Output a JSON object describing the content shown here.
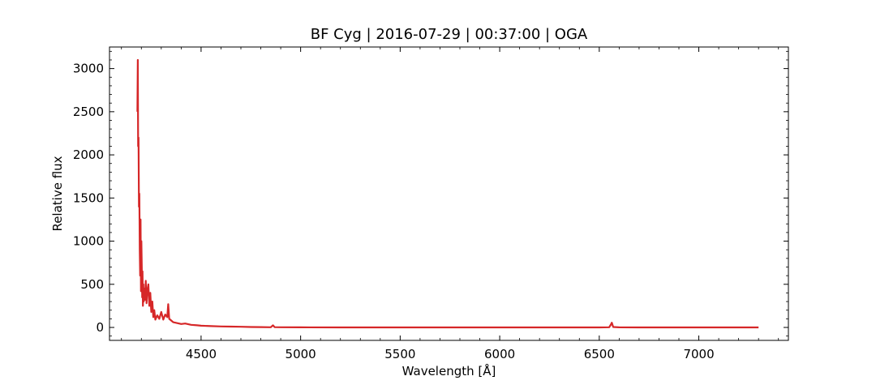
{
  "chart_data": {
    "type": "line",
    "title": "BF Cyg | 2016-07-29 | 00:37:00 | OGA",
    "xlabel": "Wavelength [Å]",
    "ylabel": "Relative flux",
    "xlim": [
      4040,
      7450
    ],
    "ylim": [
      -150,
      3250
    ],
    "x_ticks": [
      4500,
      5000,
      5500,
      6000,
      6500,
      7000
    ],
    "y_ticks": [
      0,
      500,
      1000,
      1500,
      2000,
      2500,
      3000
    ],
    "grid": false,
    "legend": "none",
    "series": [
      {
        "color": "#d62728",
        "x": [
          4180,
          4182,
          4184,
          4186,
          4188,
          4190,
          4192,
          4194,
          4196,
          4198,
          4200,
          4202,
          4204,
          4206,
          4208,
          4210,
          4212,
          4215,
          4218,
          4222,
          4226,
          4230,
          4235,
          4240,
          4245,
          4250,
          4255,
          4260,
          4265,
          4270,
          4280,
          4290,
          4300,
          4310,
          4320,
          4330,
          4335,
          4340,
          4350,
          4360,
          4380,
          4400,
          4420,
          4450,
          4480,
          4500,
          4550,
          4600,
          4650,
          4700,
          4750,
          4800,
          4850,
          4861,
          4870,
          4900,
          5000,
          5200,
          5500,
          5800,
          6000,
          6300,
          6500,
          6550,
          6560,
          6563,
          6570,
          6600,
          6700,
          7000,
          7200,
          7300
        ],
        "y": [
          2500,
          3100,
          2100,
          2200,
          1400,
          1550,
          900,
          600,
          1250,
          420,
          1000,
          700,
          350,
          650,
          250,
          500,
          300,
          450,
          320,
          540,
          280,
          420,
          500,
          250,
          400,
          180,
          300,
          120,
          200,
          90,
          140,
          100,
          180,
          90,
          150,
          120,
          270,
          100,
          80,
          60,
          50,
          40,
          45,
          30,
          25,
          20,
          15,
          12,
          10,
          8,
          5,
          4,
          2,
          25,
          3,
          2,
          1,
          0,
          0,
          0,
          0,
          0,
          0,
          2,
          40,
          55,
          5,
          1,
          0,
          0,
          0,
          0
        ]
      }
    ]
  }
}
